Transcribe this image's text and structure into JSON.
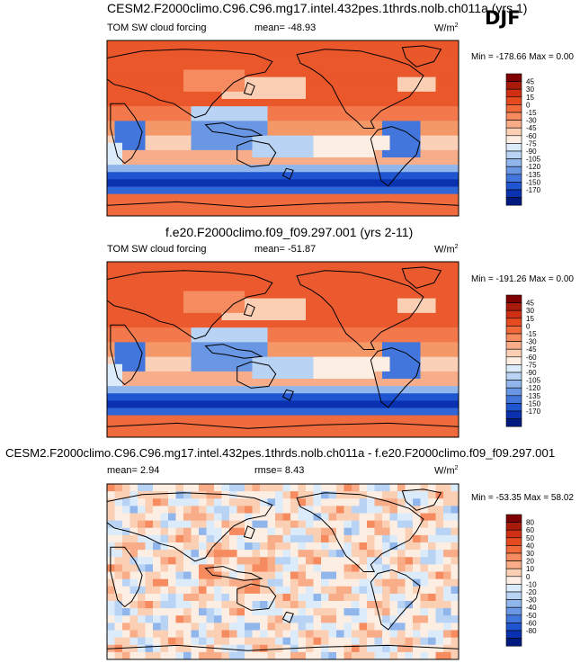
{
  "season": "DJF",
  "units_label": "W/m",
  "units_exp": "2",
  "chart_data": [
    {
      "type": "heatmap",
      "title": "CESM2.F2000climo.C96.C96.mg17.intel.432pes.1thrds.nolb.ch011a (yrs 1)",
      "variable": "TOM SW cloud forcing",
      "mean_text": "mean= -48.93",
      "units": "W/m2",
      "min_max_text": "Min = -178.66 Max =   0.00",
      "min": -178.66,
      "max": 0.0,
      "colorbar_levels": [
        "45",
        "30",
        "15",
        "0",
        "-15",
        "-30",
        "-45",
        "-60",
        "-75",
        "-90",
        "-105",
        "-120",
        "-135",
        "-150",
        "-170"
      ],
      "colorbar_colors": [
        "#7f0000",
        "#a81b0b",
        "#cf2f12",
        "#e64b20",
        "#f06a3c",
        "#f58b5f",
        "#f8ac87",
        "#fbcfb4",
        "#fdeee4",
        "#dcebfa",
        "#b8d3f3",
        "#90b6ec",
        "#6a97e3",
        "#4276dc",
        "#1f55d0",
        "#0a31b0",
        "#001a80"
      ],
      "pattern": "control"
    },
    {
      "type": "heatmap",
      "title": "f.e20.F2000climo.f09_f09.297.001 (yrs 2-11)",
      "variable": "TOM SW cloud forcing",
      "mean_text": "mean= -51.87",
      "units": "W/m2",
      "min_max_text": "Min = -191.26 Max =   0.00",
      "min": -191.26,
      "max": 0.0,
      "colorbar_levels": [
        "45",
        "30",
        "15",
        "0",
        "-15",
        "-30",
        "-45",
        "-60",
        "-75",
        "-90",
        "-105",
        "-120",
        "-135",
        "-150",
        "-170"
      ],
      "colorbar_colors": [
        "#7f0000",
        "#a81b0b",
        "#cf2f12",
        "#e64b20",
        "#f06a3c",
        "#f58b5f",
        "#f8ac87",
        "#fbcfb4",
        "#fdeee4",
        "#dcebfa",
        "#b8d3f3",
        "#90b6ec",
        "#6a97e3",
        "#4276dc",
        "#1f55d0",
        "#0a31b0",
        "#001a80"
      ],
      "pattern": "control"
    },
    {
      "type": "heatmap",
      "title": "CESM2.F2000climo.C96.C96.mg17.intel.432pes.1thrds.nolb.ch011a - f.e20.F2000climo.f09_f09.297.001",
      "mean_text": "mean=   2.94",
      "rmse_text": "rmse=   8.43",
      "units": "W/m2",
      "min_max_text": "Min = -53.35 Max =  58.02",
      "min": -53.35,
      "max": 58.02,
      "colorbar_levels": [
        "80",
        "60",
        "50",
        "40",
        "30",
        "20",
        "10",
        "0",
        "-10",
        "-20",
        "-30",
        "-40",
        "-50",
        "-60",
        "-80"
      ],
      "colorbar_colors": [
        "#7f0000",
        "#a81b0b",
        "#cf2f12",
        "#e64b20",
        "#f06a3c",
        "#f58b5f",
        "#f8ac87",
        "#fbcfb4",
        "#fdeee4",
        "#dcebfa",
        "#b8d3f3",
        "#90b6ec",
        "#6a97e3",
        "#4276dc",
        "#1f55d0",
        "#0a31b0",
        "#001a80"
      ],
      "pattern": "difference"
    }
  ]
}
